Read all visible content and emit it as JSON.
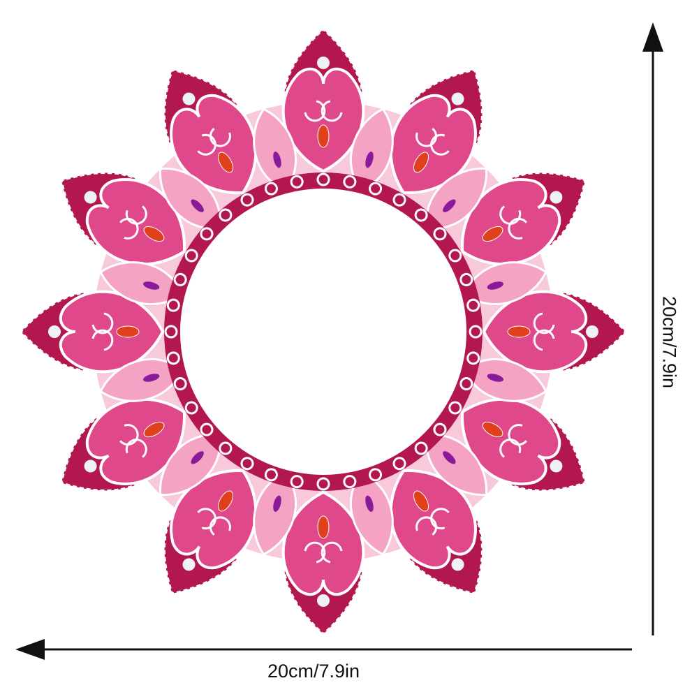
{
  "product": {
    "colors": {
      "dark_petal": "#b3174f",
      "mid_petal": "#e0488c",
      "light_petal": "#f4a3c4",
      "pale": "#f8c9da",
      "gem_orange": "#e0401c",
      "gem_purple": "#8a1a9a",
      "pearl": "#eef2f2"
    },
    "petal_count": 12
  },
  "dimensions": {
    "width_label": "20cm/7.9in",
    "height_label": "20cm/7.9in"
  }
}
